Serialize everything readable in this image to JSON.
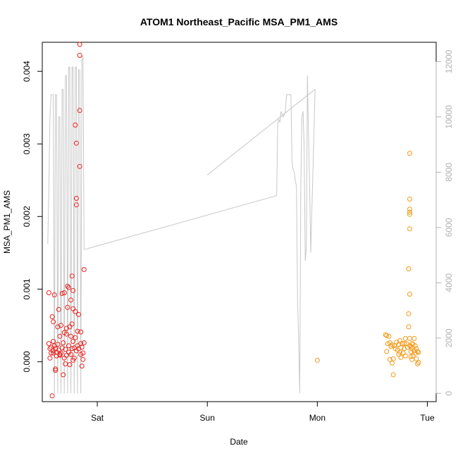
{
  "chart_data": {
    "type": "scatter",
    "title": "ATOM1 Northeast_Pacific MSA_PM1_AMS",
    "xlabel": "Date",
    "ylabel": "MSA_PM1_AMS",
    "x_ticks": [
      {
        "label": "Sat",
        "day": 1.0
      },
      {
        "label": "Sun",
        "day": 2.0
      },
      {
        "label": "Mon",
        "day": 3.0
      },
      {
        "label": "Tue",
        "day": 4.0
      }
    ],
    "xlim": [
      0.5,
      4.08
    ],
    "ylim": [
      -0.00055,
      0.0044
    ],
    "y_ticks": [
      0.0,
      0.001,
      0.002,
      0.003,
      0.004
    ],
    "y_tick_labels": [
      "0.000",
      "0.001",
      "0.002",
      "0.003",
      "0.004"
    ],
    "right_axis": {
      "ylim": [
        -300,
        12700
      ],
      "ticks": [
        0,
        2000,
        4000,
        6000,
        8000,
        10000,
        12000
      ],
      "color": "#b0b0b0"
    },
    "colors": {
      "series_a": "#e8231f",
      "series_b": "#f39a1a",
      "line": "#c8c8c8"
    },
    "series": [
      {
        "color": "#e8231f",
        "points": [
          [
            0.56,
            0.00095
          ],
          [
            0.56,
            0.00025
          ],
          [
            0.57,
            0.00018
          ],
          [
            0.57,
            5e-05
          ],
          [
            0.58,
            0.0002
          ],
          [
            0.58,
            0.00012
          ],
          [
            0.59,
            -0.00047
          ],
          [
            0.59,
            0.00062
          ],
          [
            0.6,
            0.00055
          ],
          [
            0.6,
            0.00028
          ],
          [
            0.6,
            0.00015
          ],
          [
            0.61,
            0.00092
          ],
          [
            0.61,
            0.00022
          ],
          [
            0.62,
            -0.0001
          ],
          [
            0.62,
            0.00018
          ],
          [
            0.62,
            -0.00012
          ],
          [
            0.63,
            0.00013
          ],
          [
            0.63,
            8e-05
          ],
          [
            0.64,
            0.00048
          ],
          [
            0.64,
            0.00024
          ],
          [
            0.65,
            0.00072
          ],
          [
            0.65,
            0.00016
          ],
          [
            0.66,
            0.00035
          ],
          [
            0.66,
            0.0001
          ],
          [
            0.67,
            0.0005
          ],
          [
            0.67,
            0.00012
          ],
          [
            0.68,
            0.00094
          ],
          [
            0.68,
            0.00019
          ],
          [
            0.69,
            0.00026
          ],
          [
            0.69,
            -0.00018
          ],
          [
            0.7,
            0.00095
          ],
          [
            0.7,
            0.0004
          ],
          [
            0.71,
            0.00017
          ],
          [
            0.71,
            -3e-05
          ],
          [
            0.72,
            0.00038
          ],
          [
            0.72,
            0.00046
          ],
          [
            0.73,
            0.00104
          ],
          [
            0.73,
            0.00075
          ],
          [
            0.74,
            0.00102
          ],
          [
            0.74,
            0.00022
          ],
          [
            0.74,
            0.00013
          ],
          [
            0.75,
            0.00048
          ],
          [
            0.75,
            -4e-05
          ],
          [
            0.76,
            0.00085
          ],
          [
            0.76,
            0.00035
          ],
          [
            0.76,
            0.0001
          ],
          [
            0.77,
            0.00118
          ],
          [
            0.77,
            0.00052
          ],
          [
            0.77,
            0.00018
          ],
          [
            0.78,
            0.00098
          ],
          [
            0.78,
            0.00073
          ],
          [
            0.78,
            0.00028
          ],
          [
            0.79,
            0.00019
          ],
          [
            0.79,
            5e-05
          ],
          [
            0.8,
            0.00326
          ],
          [
            0.8,
            0.00069
          ],
          [
            0.8,
            0.00033
          ],
          [
            0.81,
            0.00301
          ],
          [
            0.81,
            0.00225
          ],
          [
            0.81,
            0.00216
          ],
          [
            0.81,
            0.00015
          ],
          [
            0.82,
            0.00042
          ],
          [
            0.82,
            0.00022
          ],
          [
            0.83,
            0.00065
          ],
          [
            0.83,
            0.00018
          ],
          [
            0.84,
            0.00437
          ],
          [
            0.84,
            0.00422
          ],
          [
            0.84,
            0.00346
          ],
          [
            0.84,
            0.00269
          ],
          [
            0.85,
            0.00041
          ],
          [
            0.85,
            0.00025
          ],
          [
            0.85,
            0.0001
          ],
          [
            0.86,
            -6e-05
          ],
          [
            0.86,
            0.0002
          ],
          [
            0.87,
            0.00012
          ],
          [
            0.87,
            3e-05
          ],
          [
            0.88,
            0.00026
          ],
          [
            0.88,
            0.00127
          ],
          [
            0.6,
            0.00012
          ],
          [
            0.66,
            9e-05
          ],
          [
            0.7,
            5e-05
          ],
          [
            0.72,
            9e-05
          ],
          [
            0.78,
            2e-05
          ]
        ]
      },
      {
        "color": "#f39a1a",
        "points": [
          [
            3.0,
            2e-05
          ],
          [
            3.62,
            0.00037
          ],
          [
            3.63,
            0.00036
          ],
          [
            3.63,
            0.00014
          ],
          [
            3.64,
            0.00025
          ],
          [
            3.65,
            0.00035
          ],
          [
            3.66,
            3e-05
          ],
          [
            3.66,
            0.00026
          ],
          [
            3.67,
            0.00021
          ],
          [
            3.68,
            0.00023
          ],
          [
            3.68,
            -2e-05
          ],
          [
            3.69,
            -0.00018
          ],
          [
            3.69,
            4e-05
          ],
          [
            3.7,
            0.00022
          ],
          [
            3.71,
            0.00018
          ],
          [
            3.72,
            0.00027
          ],
          [
            3.73,
            0.00016
          ],
          [
            3.74,
            0.00024
          ],
          [
            3.74,
            0.0001
          ],
          [
            3.75,
            0.00029
          ],
          [
            3.75,
            0.00013
          ],
          [
            3.76,
            0.00019
          ],
          [
            3.76,
            6e-05
          ],
          [
            3.77,
            0.00025
          ],
          [
            3.78,
            0.00012
          ],
          [
            3.79,
            0.00025
          ],
          [
            3.79,
            0.00018
          ],
          [
            3.8,
            0.00032
          ],
          [
            3.8,
            8e-05
          ],
          [
            3.81,
            0.00025
          ],
          [
            3.82,
            0.0002
          ],
          [
            3.83,
            0.00128
          ],
          [
            3.83,
            0.00066
          ],
          [
            3.83,
            0.00048
          ],
          [
            3.84,
            0.00287
          ],
          [
            3.84,
            0.00224
          ],
          [
            3.84,
            0.0021
          ],
          [
            3.84,
            0.00206
          ],
          [
            3.84,
            0.00203
          ],
          [
            3.84,
            0.00183
          ],
          [
            3.84,
            0.00093
          ],
          [
            3.84,
            0.00032
          ],
          [
            3.84,
            0.00022
          ],
          [
            3.85,
            0.00021
          ],
          [
            3.85,
            0.00014
          ],
          [
            3.86,
            0.00025
          ],
          [
            3.86,
            0.00018
          ],
          [
            3.87,
            0.00024
          ],
          [
            3.87,
            8e-05
          ],
          [
            3.88,
            0.00032
          ],
          [
            3.88,
            0.00015
          ],
          [
            3.89,
            0.00022
          ],
          [
            3.89,
            0.00012
          ],
          [
            3.9,
            0.00018
          ],
          [
            3.9,
            4e-05
          ],
          [
            3.91,
            0.00014
          ],
          [
            3.91,
            -3e-05
          ],
          [
            3.92,
            0.00013
          ],
          [
            3.92,
            -1e-05
          ],
          [
            3.85,
            7e-05
          ],
          [
            3.86,
            3e-05
          ]
        ]
      }
    ],
    "line_series": {
      "axis": "right",
      "points": [
        [
          0.55,
          5400
        ],
        [
          0.56,
          7500
        ],
        [
          0.57,
          10000
        ],
        [
          0.58,
          10800
        ],
        [
          0.6,
          10800
        ],
        [
          0.61,
          0
        ],
        [
          0.62,
          10800
        ],
        [
          0.63,
          10800
        ],
        [
          0.64,
          0
        ],
        [
          0.65,
          10000
        ],
        [
          0.66,
          10000
        ],
        [
          0.67,
          0
        ],
        [
          0.68,
          11000
        ],
        [
          0.69,
          11000
        ],
        [
          0.7,
          0
        ],
        [
          0.71,
          11500
        ],
        [
          0.72,
          11500
        ],
        [
          0.73,
          0
        ],
        [
          0.74,
          11800
        ],
        [
          0.75,
          11800
        ],
        [
          0.76,
          0
        ],
        [
          0.77,
          11800
        ],
        [
          0.78,
          11800
        ],
        [
          0.79,
          0
        ],
        [
          0.8,
          11800
        ],
        [
          0.81,
          11800
        ],
        [
          0.82,
          0
        ],
        [
          0.83,
          11700
        ],
        [
          0.84,
          11700
        ],
        [
          0.85,
          0
        ],
        [
          0.86,
          12200
        ],
        [
          0.87,
          12200
        ],
        [
          0.88,
          5200
        ],
        [
          2.63,
          7150
        ],
        [
          2.64,
          9800
        ],
        [
          2.65,
          9900
        ],
        [
          2.66,
          9800
        ],
        [
          2.67,
          10200
        ],
        [
          2.69,
          10000
        ],
        [
          2.71,
          10200
        ],
        [
          2.72,
          10800
        ],
        [
          2.73,
          10800
        ],
        [
          2.75,
          10800
        ],
        [
          2.76,
          10800
        ],
        [
          2.77,
          8400
        ],
        [
          2.78,
          8100
        ],
        [
          2.79,
          8000
        ],
        [
          2.8,
          7700
        ],
        [
          2.81,
          7500
        ],
        [
          2.82,
          3400
        ],
        [
          2.83,
          2000
        ],
        [
          2.84,
          0
        ],
        [
          2.85,
          7500
        ],
        [
          2.86,
          10000
        ],
        [
          2.87,
          10200
        ],
        [
          2.88,
          9000
        ],
        [
          2.89,
          4800
        ],
        [
          2.9,
          5200
        ],
        [
          2.91,
          11500
        ],
        [
          2.92,
          9300
        ],
        [
          2.93,
          7500
        ],
        [
          2.94,
          5100
        ],
        [
          2.0,
          7900
        ],
        [
          2.02,
          8050
        ],
        [
          2.98,
          11000
        ]
      ]
    }
  }
}
